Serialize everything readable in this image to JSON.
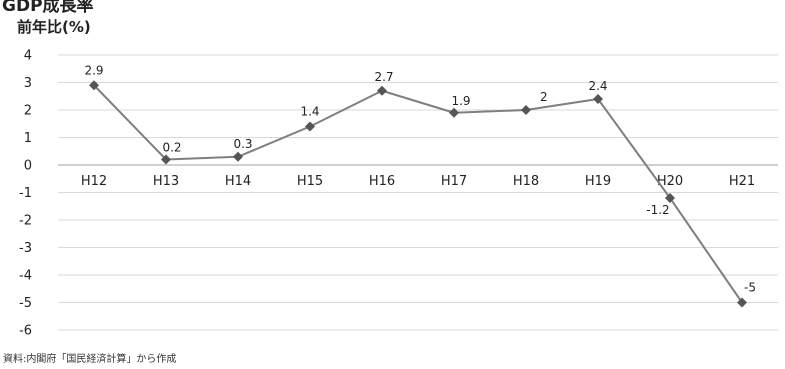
{
  "header": {
    "partial_title": "GDP成長率",
    "unit_label": "前年比(%)"
  },
  "colors": {
    "line": "#7f7f7f",
    "marker": "#555555",
    "grid": "#d9d9d9",
    "zero_axis": "#bfbfbf"
  },
  "chart_data": {
    "type": "line",
    "title": "",
    "xlabel": "",
    "ylabel": "前年比(%)",
    "categories": [
      "H12",
      "H13",
      "H14",
      "H15",
      "H16",
      "H17",
      "H18",
      "H19",
      "H20",
      "H21"
    ],
    "series": [
      {
        "values": [
          2.9,
          0.2,
          0.3,
          1.4,
          2.7,
          1.9,
          2,
          2.4,
          -1.2,
          -5
        ],
        "data_labels": [
          "2.9",
          "0.2",
          "0.3",
          "1.4",
          "2.7",
          "1.9",
          "2",
          "2.4",
          "-1.2",
          "-5"
        ],
        "marker": "diamond"
      }
    ],
    "ylim": [
      -6,
      4
    ],
    "yticks": [
      4,
      3,
      2,
      1,
      0,
      -1,
      -2,
      -3,
      -4,
      -5,
      -6
    ],
    "grid": true,
    "legend": "none"
  },
  "footer": {
    "source": "資料:内閣府「国民経済計算」から作成"
  }
}
